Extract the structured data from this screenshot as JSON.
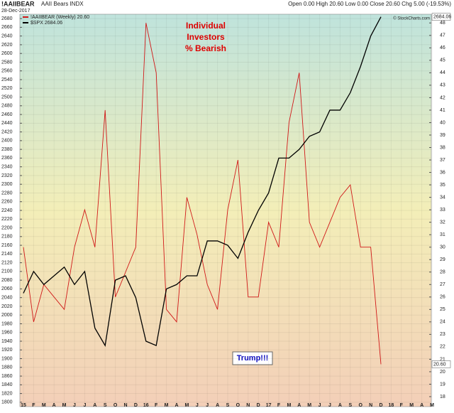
{
  "chart_data": {
    "type": "line",
    "title": "!AAIIBEAR",
    "subtitle": "AAII Bears INDX",
    "date": "28-Dec-2017",
    "quote": "Open 0.00 High 20.60 Low 0.00 Close 20.60 Chg 5.00 (-19.53%)",
    "source": "© StockCharts.com",
    "annotation_lines": [
      "Individual",
      "Investors",
      "% Bearish"
    ],
    "callout": "Trump!!!",
    "categories": [
      "15",
      "F",
      "M",
      "A",
      "M",
      "J",
      "J",
      "A",
      "S",
      "O",
      "N",
      "D",
      "16",
      "F",
      "M",
      "A",
      "M",
      "J",
      "J",
      "A",
      "S",
      "O",
      "N",
      "D",
      "17",
      "F",
      "M",
      "A",
      "M",
      "J",
      "J",
      "A",
      "S",
      "O",
      "N",
      "D",
      "18",
      "F",
      "M",
      "A",
      "M"
    ],
    "series": [
      {
        "name": "!AAIIBEAR (Weekly) 20.60",
        "color": "#d01818",
        "axis": "y2",
        "end_label": "20.60",
        "values": [
          30,
          24,
          27,
          26,
          25,
          30,
          33,
          30,
          41,
          26,
          28,
          30,
          48,
          44,
          25,
          24,
          34,
          31,
          27,
          25,
          33,
          37,
          26,
          26,
          32,
          30,
          40,
          44,
          32,
          30,
          32,
          34,
          35,
          30,
          30,
          20.6,
          null,
          null,
          null,
          null,
          null
        ]
      },
      {
        "name": "$SPX 2684.06",
        "color": "#000000",
        "axis": "y",
        "end_label": "2684.06",
        "values": [
          2050,
          2100,
          2070,
          2090,
          2110,
          2070,
          2100,
          1970,
          1930,
          2080,
          2090,
          2040,
          1940,
          1930,
          2060,
          2070,
          2090,
          2090,
          2170,
          2170,
          2160,
          2130,
          2190,
          2240,
          2280,
          2360,
          2360,
          2380,
          2410,
          2420,
          2470,
          2470,
          2510,
          2570,
          2640,
          2684,
          null,
          null,
          null,
          null,
          null
        ]
      }
    ],
    "ylim": [
      1790,
      2690
    ],
    "yticks": [
      1800,
      1820,
      1840,
      1860,
      1880,
      1900,
      1920,
      1940,
      1960,
      1980,
      2000,
      2020,
      2040,
      2060,
      2080,
      2100,
      2120,
      2140,
      2160,
      2180,
      2200,
      2220,
      2240,
      2260,
      2280,
      2300,
      2320,
      2340,
      2360,
      2380,
      2400,
      2420,
      2440,
      2460,
      2480,
      2500,
      2520,
      2540,
      2560,
      2580,
      2600,
      2620,
      2640,
      2660,
      2680
    ],
    "y2lim": [
      17.2,
      48.7
    ],
    "y2ticks": [
      18,
      19,
      20,
      21,
      22,
      23,
      24,
      25,
      26,
      27,
      28,
      29,
      30,
      31,
      32,
      33,
      34,
      35,
      36,
      37,
      38,
      39,
      40,
      41,
      42,
      43,
      44,
      45,
      46,
      47,
      48
    ],
    "grid": true
  }
}
